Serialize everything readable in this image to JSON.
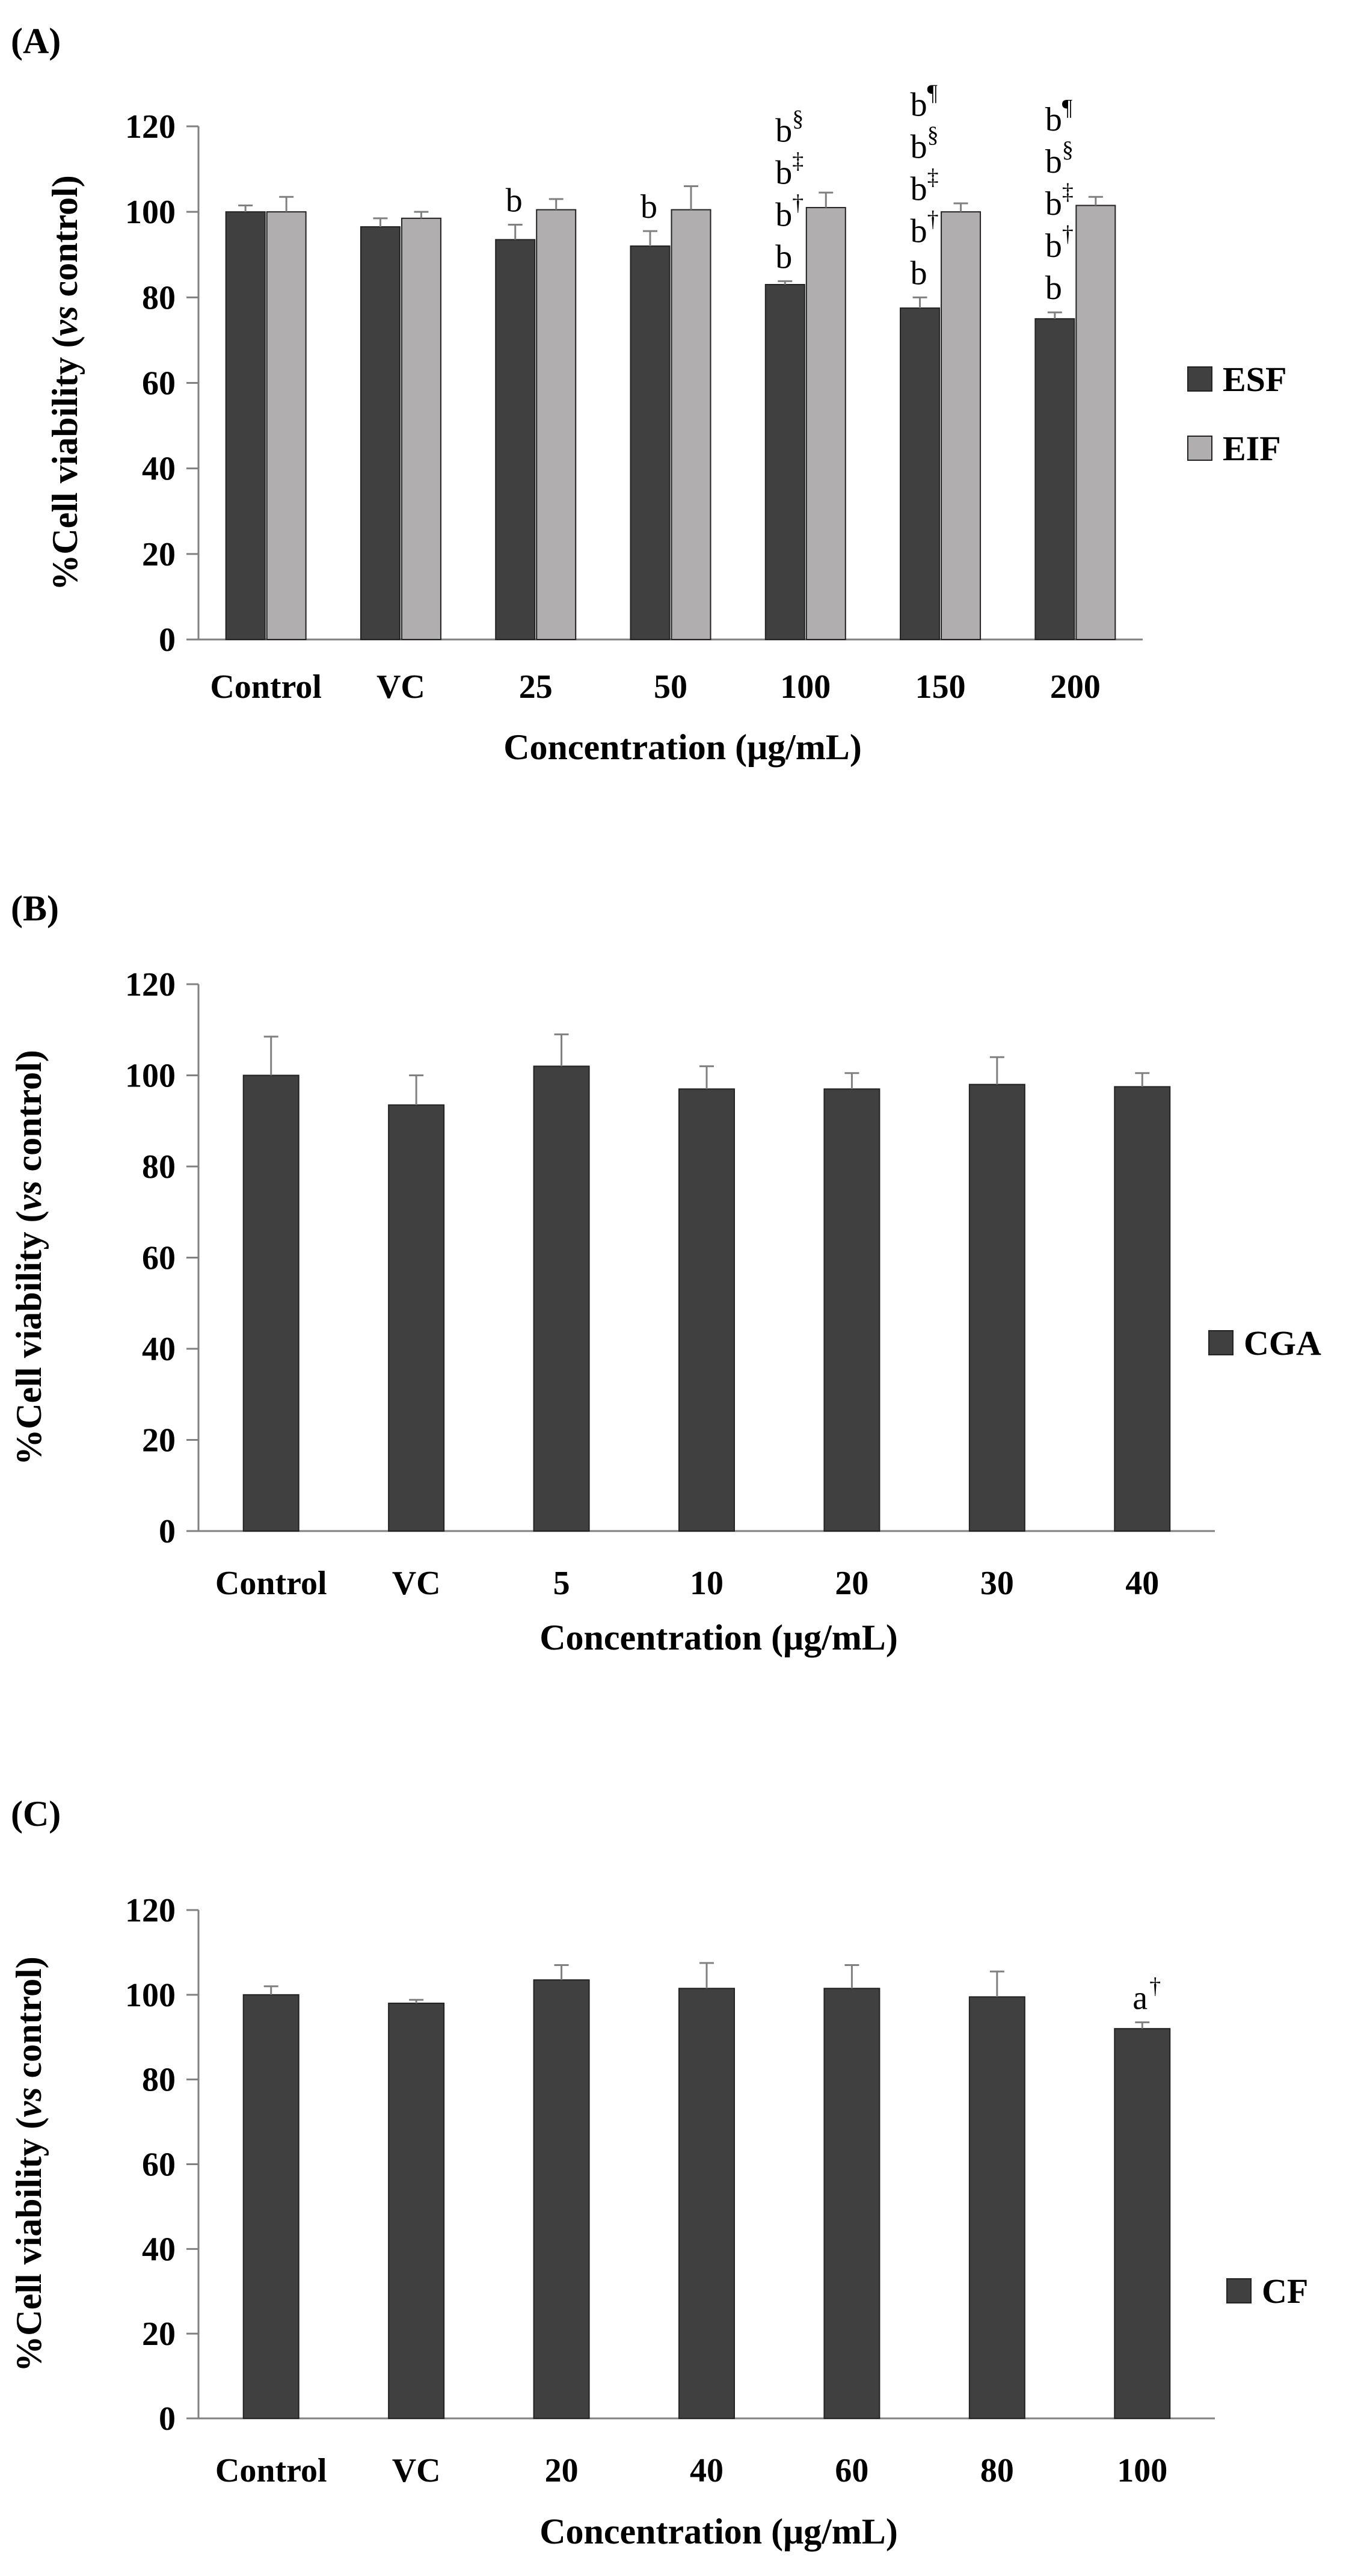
{
  "colors": {
    "dark": "#404040",
    "light": "#b0aeae",
    "axis": "#808080"
  },
  "chart_data": [
    {
      "panel": "(A)",
      "type": "bar",
      "ylabel": "%Cell viability",
      "ylabel_italic": "vs",
      "ylabel_tail": "control)",
      "ylabel_open": "(",
      "xlabel": "Concentration  (μg/mL)",
      "ylim": [
        0,
        120
      ],
      "yticks": [
        "0",
        "20",
        "40",
        "60",
        "80",
        "100",
        "120"
      ],
      "categories": [
        "Control",
        "VC",
        "25",
        "50",
        "100",
        "150",
        "200"
      ],
      "series": [
        {
          "name": "ESF",
          "color": "#404040",
          "values": [
            100,
            96.5,
            93.5,
            92,
            83,
            77.5,
            75
          ],
          "errors": [
            1.5,
            2,
            3.5,
            3.5,
            0.8,
            2.5,
            1.5
          ]
        },
        {
          "name": "EIF",
          "color": "#b0aeae",
          "values": [
            100,
            98.5,
            100.5,
            100.5,
            101,
            100,
            101.5
          ],
          "errors": [
            3.5,
            1.5,
            2.5,
            5.5,
            3.5,
            2,
            2
          ]
        }
      ],
      "annotations": [
        {
          "index": 2,
          "lines": [
            {
              "t": "b",
              "s": ""
            }
          ]
        },
        {
          "index": 3,
          "lines": [
            {
              "t": "b",
              "s": ""
            }
          ]
        },
        {
          "index": 4,
          "lines": [
            {
              "t": "b",
              "s": "§"
            },
            {
              "t": "b",
              "s": "‡"
            },
            {
              "t": "b",
              "s": "†"
            },
            {
              "t": "b",
              "s": ""
            }
          ]
        },
        {
          "index": 5,
          "lines": [
            {
              "t": "b",
              "s": "¶"
            },
            {
              "t": "b",
              "s": "§"
            },
            {
              "t": "b",
              "s": "‡"
            },
            {
              "t": "b",
              "s": "†"
            },
            {
              "t": "b",
              "s": ""
            }
          ]
        },
        {
          "index": 6,
          "lines": [
            {
              "t": "b",
              "s": "¶"
            },
            {
              "t": "b",
              "s": "§"
            },
            {
              "t": "b",
              "s": "‡"
            },
            {
              "t": "b",
              "s": "†"
            },
            {
              "t": "b",
              "s": ""
            }
          ]
        }
      ]
    },
    {
      "panel": "(B)",
      "type": "bar",
      "ylabel": "%Cell viability",
      "ylabel_italic": "vs",
      "ylabel_tail": "control)",
      "ylabel_open": "(",
      "xlabel": "Concentration  (μg/mL)",
      "ylim": [
        0,
        120
      ],
      "yticks": [
        "0",
        "20",
        "40",
        "60",
        "80",
        "100",
        "120"
      ],
      "categories": [
        "Control",
        "VC",
        "5",
        "10",
        "20",
        "30",
        "40"
      ],
      "series": [
        {
          "name": "CGA",
          "color": "#404040",
          "values": [
            100,
            93.5,
            102,
            97,
            97,
            98,
            97.5
          ],
          "errors": [
            8.5,
            6.5,
            7,
            5,
            3.5,
            6,
            3
          ]
        }
      ],
      "annotations": []
    },
    {
      "panel": "(C)",
      "type": "bar",
      "ylabel": "%Cell viability",
      "ylabel_italic": "vs",
      "ylabel_tail": "control)",
      "ylabel_open": "(",
      "xlabel": "Concentration  (μg/mL)",
      "ylim": [
        0,
        120
      ],
      "yticks": [
        "0",
        "20",
        "40",
        "60",
        "80",
        "100",
        "120"
      ],
      "categories": [
        "Control",
        "VC",
        "20",
        "40",
        "60",
        "80",
        "100"
      ],
      "series": [
        {
          "name": "CF",
          "color": "#404040",
          "values": [
            100,
            98,
            103.5,
            101.5,
            101.5,
            99.5,
            92
          ],
          "errors": [
            2,
            0.8,
            3.5,
            6,
            5.5,
            6,
            1.5
          ]
        }
      ],
      "annotations": [
        {
          "index": 6,
          "lines": [
            {
              "t": "a",
              "s": "†"
            }
          ]
        }
      ]
    }
  ]
}
